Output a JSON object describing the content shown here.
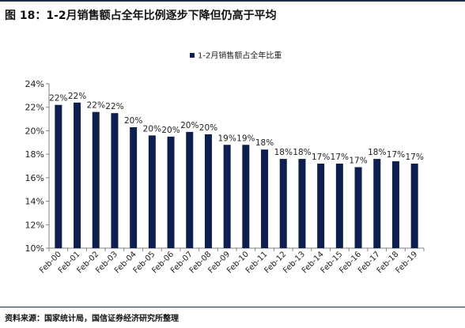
{
  "figure_title": "图 18：1-2月销售额占全年比例逐步下降但仍高于平均",
  "source_note": "资料来源：国家统计局，国信证券经济研究所整理",
  "colors": {
    "bar": "#0d1f4f",
    "axis": "#808080",
    "text": "#222222"
  },
  "chart_data": {
    "type": "bar",
    "categories": [
      "Feb-00",
      "Feb-01",
      "Feb-02",
      "Feb-03",
      "Feb-04",
      "Feb-05",
      "Feb-06",
      "Feb-07",
      "Feb-08",
      "Feb-09",
      "Feb-10",
      "Feb-11",
      "Feb-12",
      "Feb-13",
      "Feb-14",
      "Feb-15",
      "Feb-16",
      "Feb-17",
      "Feb-18",
      "Feb-19"
    ],
    "series": [
      {
        "name": "1-2月销售额占全年比重",
        "values": [
          22.2,
          22.4,
          21.6,
          21.5,
          20.3,
          19.6,
          19.5,
          19.9,
          19.7,
          18.8,
          18.8,
          18.4,
          17.6,
          17.6,
          17.2,
          17.2,
          16.9,
          17.6,
          17.4,
          17.2
        ],
        "labels": [
          "22%",
          "22%",
          "22%",
          "22%",
          "20%",
          "20%",
          "20%",
          "20%",
          "20%",
          "19%",
          "19%",
          "18%",
          "18%",
          "18%",
          "17%",
          "17%",
          "17%",
          "18%",
          "17%",
          "17%"
        ]
      }
    ],
    "ylim": [
      10,
      24
    ],
    "yticks": [
      10,
      12,
      14,
      16,
      18,
      20,
      22,
      24
    ],
    "ytick_labels": [
      "10%",
      "12%",
      "14%",
      "16%",
      "18%",
      "20%",
      "22%",
      "24%"
    ],
    "legend_position": "top-center",
    "grid": false
  }
}
